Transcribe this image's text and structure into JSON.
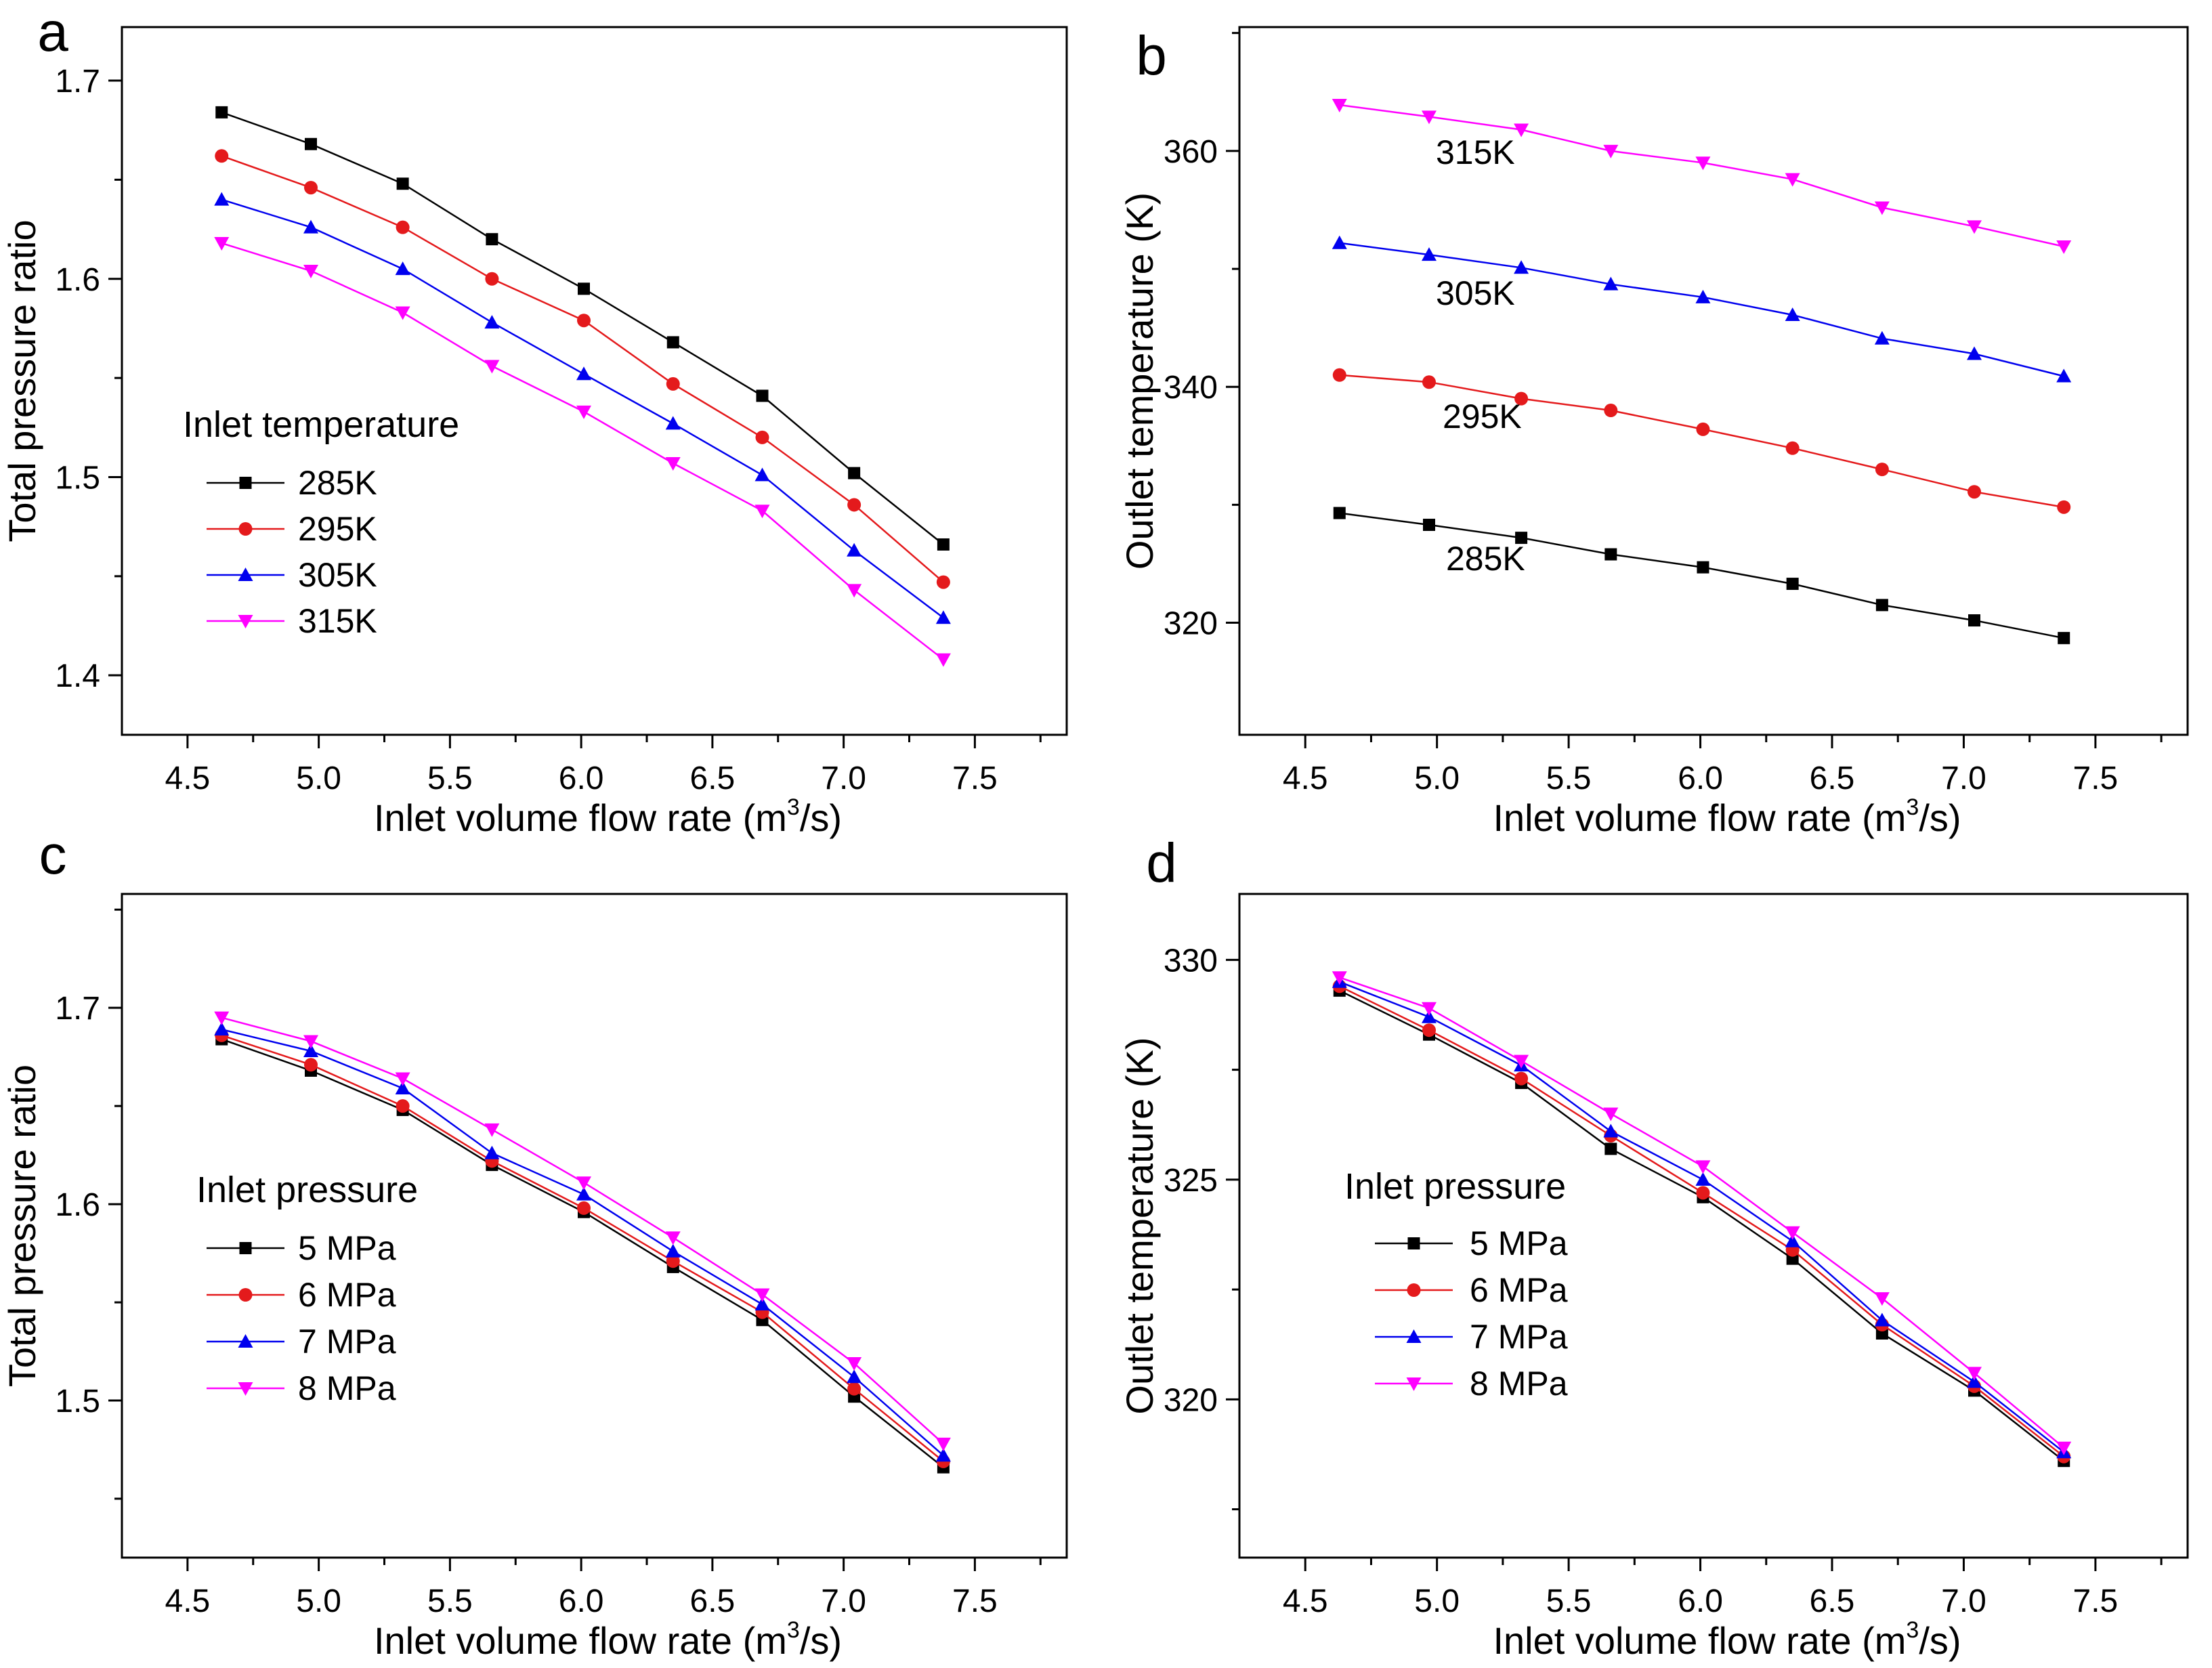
{
  "figure": {
    "colors": {
      "series": [
        "#000000",
        "#e41a1c",
        "#0000ee",
        "#ff00ff"
      ],
      "axis": "#000000"
    },
    "markers": [
      "square",
      "circle",
      "triangle-up",
      "triangle-down"
    ]
  },
  "chart_data": [
    {
      "panel_letter": "a",
      "type": "line",
      "xlabel_main": "Inlet volume flow rate (m",
      "xlabel_sup": "3",
      "xlabel_end": "/s)",
      "ylabel": "Total pressure ratio",
      "xlim": [
        4.25,
        7.85
      ],
      "ylim": [
        1.37,
        1.727
      ],
      "xticks": [
        "4.5",
        "5.0",
        "5.5",
        "6.0",
        "6.5",
        "7.0",
        "7.5"
      ],
      "yticks": [
        "1.4",
        "1.5",
        "1.6",
        "1.7"
      ],
      "legend_title": "Inlet temperature",
      "legend_position": "middle-left",
      "x": [
        4.63,
        4.97,
        5.32,
        5.66,
        6.01,
        6.35,
        6.69,
        7.04,
        7.38
      ],
      "series": [
        {
          "name": "285K",
          "values": [
            1.684,
            1.668,
            1.648,
            1.62,
            1.595,
            1.568,
            1.541,
            1.502,
            1.466
          ]
        },
        {
          "name": "295K",
          "values": [
            1.662,
            1.646,
            1.626,
            1.6,
            1.579,
            1.547,
            1.52,
            1.486,
            1.447
          ]
        },
        {
          "name": "305K",
          "values": [
            1.64,
            1.626,
            1.605,
            1.578,
            1.552,
            1.527,
            1.501,
            1.463,
            1.429
          ]
        },
        {
          "name": "315K",
          "values": [
            1.618,
            1.604,
            1.583,
            1.556,
            1.533,
            1.507,
            1.483,
            1.443,
            1.408
          ]
        }
      ]
    },
    {
      "panel_letter": "b",
      "type": "line",
      "xlabel_main": "Inlet volume flow rate (m",
      "xlabel_sup": "3",
      "xlabel_end": "/s)",
      "ylabel": "Outlet temperature (K)",
      "xlim": [
        4.25,
        7.85
      ],
      "ylim": [
        310.5,
        370.5
      ],
      "xticks": [
        "4.5",
        "5.0",
        "5.5",
        "6.0",
        "6.5",
        "7.0",
        "7.5"
      ],
      "yticks": [
        "320",
        "340",
        "360"
      ],
      "legend_title": "",
      "x": [
        4.63,
        4.97,
        5.32,
        5.66,
        6.01,
        6.35,
        6.69,
        7.04,
        7.38
      ],
      "series": [
        {
          "name": "285K",
          "values": [
            329.3,
            328.3,
            327.2,
            325.8,
            324.7,
            323.3,
            321.5,
            320.2,
            318.7
          ]
        },
        {
          "name": "295K",
          "values": [
            341.0,
            340.4,
            339.0,
            338.0,
            336.4,
            334.8,
            333.0,
            331.1,
            329.8
          ]
        },
        {
          "name": "305K",
          "values": [
            352.2,
            351.2,
            350.1,
            348.7,
            347.6,
            346.1,
            344.1,
            342.8,
            340.9
          ]
        },
        {
          "name": "315K",
          "values": [
            363.9,
            362.9,
            361.8,
            360.0,
            359.0,
            357.6,
            355.2,
            353.6,
            351.9
          ]
        }
      ],
      "curve_labels": [
        "285K",
        "295K",
        "305K",
        "315K"
      ]
    },
    {
      "panel_letter": "c",
      "type": "line",
      "xlabel_main": "Inlet volume flow rate (m",
      "xlabel_sup": "3",
      "xlabel_end": "/s)",
      "ylabel": "Total pressure ratio",
      "xlim": [
        4.25,
        7.85
      ],
      "ylim": [
        1.42,
        1.758
      ],
      "xticks": [
        "4.5",
        "5.0",
        "5.5",
        "6.0",
        "6.5",
        "7.0",
        "7.5"
      ],
      "yticks": [
        "1.5",
        "1.6",
        "1.7"
      ],
      "legend_title": "Inlet pressure",
      "legend_position": "middle-left",
      "x": [
        4.63,
        4.97,
        5.32,
        5.66,
        6.01,
        6.35,
        6.69,
        7.04,
        7.38
      ],
      "series": [
        {
          "name": "5 MPa",
          "values": [
            1.684,
            1.668,
            1.648,
            1.62,
            1.596,
            1.568,
            1.541,
            1.502,
            1.466
          ]
        },
        {
          "name": "6 MPa",
          "values": [
            1.686,
            1.671,
            1.65,
            1.622,
            1.598,
            1.571,
            1.545,
            1.506,
            1.469
          ]
        },
        {
          "name": "7 MPa",
          "values": [
            1.689,
            1.678,
            1.659,
            1.626,
            1.605,
            1.576,
            1.549,
            1.512,
            1.472
          ]
        },
        {
          "name": "8 MPa",
          "values": [
            1.695,
            1.683,
            1.664,
            1.638,
            1.611,
            1.583,
            1.554,
            1.519,
            1.478
          ]
        }
      ]
    },
    {
      "panel_letter": "d",
      "type": "line",
      "xlabel_main": "Inlet volume flow rate (m",
      "xlabel_sup": "3",
      "xlabel_end": "/s)",
      "ylabel": "Outlet temperature (K)",
      "xlim": [
        4.25,
        7.85
      ],
      "ylim": [
        316.4,
        331.5
      ],
      "xticks": [
        "4.5",
        "5.0",
        "5.5",
        "6.0",
        "6.5",
        "7.0",
        "7.5"
      ],
      "yticks": [
        "320",
        "325",
        "330"
      ],
      "legend_title": "Inlet pressure",
      "legend_position": "middle-left",
      "x": [
        4.63,
        4.97,
        5.32,
        5.66,
        6.01,
        6.35,
        6.69,
        7.04,
        7.38
      ],
      "series": [
        {
          "name": "5 MPa",
          "values": [
            329.3,
            328.3,
            327.2,
            325.7,
            324.6,
            323.2,
            321.5,
            320.2,
            318.6
          ]
        },
        {
          "name": "6 MPa",
          "values": [
            329.4,
            328.4,
            327.3,
            326.0,
            324.7,
            323.4,
            321.7,
            320.3,
            318.7
          ]
        },
        {
          "name": "7 MPa",
          "values": [
            329.5,
            328.7,
            327.6,
            326.1,
            325.0,
            323.6,
            321.8,
            320.4,
            318.8
          ]
        },
        {
          "name": "8 MPa",
          "values": [
            329.6,
            328.9,
            327.7,
            326.5,
            325.3,
            323.8,
            322.3,
            320.6,
            318.9
          ]
        }
      ]
    }
  ]
}
